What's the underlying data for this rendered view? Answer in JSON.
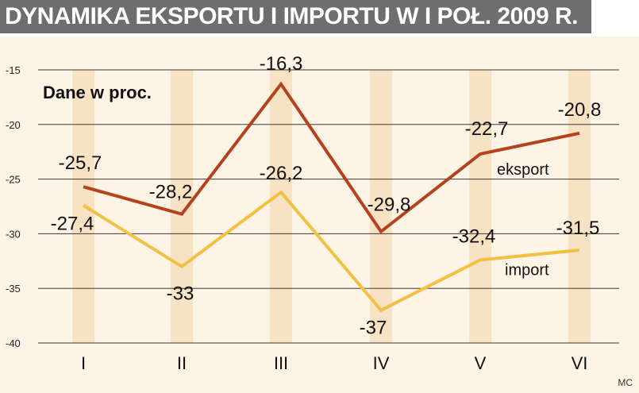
{
  "header": {
    "title": "DYNAMIKA EKSPORTU I IMPORTU W I POŁ. 2009 R."
  },
  "credit": "MC",
  "chart_data": {
    "type": "line",
    "title": "DYNAMIKA EKSPORTU I IMPORTU W I POŁ. 2009 R.",
    "subtitle": "Dane w proc.",
    "categories": [
      "I",
      "II",
      "III",
      "IV",
      "V",
      "VI"
    ],
    "ylim": [
      -40,
      -15
    ],
    "yticks": [
      "-15",
      "-20",
      "-25",
      "-30",
      "-35",
      "-40"
    ],
    "yticks_values": [
      -15,
      -20,
      -25,
      -30,
      -35,
      -40
    ],
    "grid": true,
    "series": [
      {
        "name": "eksport",
        "values": [
          -25.7,
          -28.2,
          -16.3,
          -29.8,
          -22.7,
          -20.8
        ],
        "labels": [
          "-25,7",
          "-28,2",
          "-16,3",
          "-29,8",
          "-22,7",
          "-20,8"
        ],
        "color": "#b5421c"
      },
      {
        "name": "import",
        "values": [
          -27.4,
          -33,
          -26.2,
          -37,
          -32.4,
          -31.5
        ],
        "labels": [
          "-27,4",
          "-33",
          "-26,2",
          "-37",
          "-32,4",
          "-31,5"
        ],
        "color": "#f2c043"
      }
    ]
  },
  "colors": {
    "band_light": "#fdf4e6",
    "band_dark": "#f7e2c4",
    "header_bg": "#6e6e6e"
  }
}
